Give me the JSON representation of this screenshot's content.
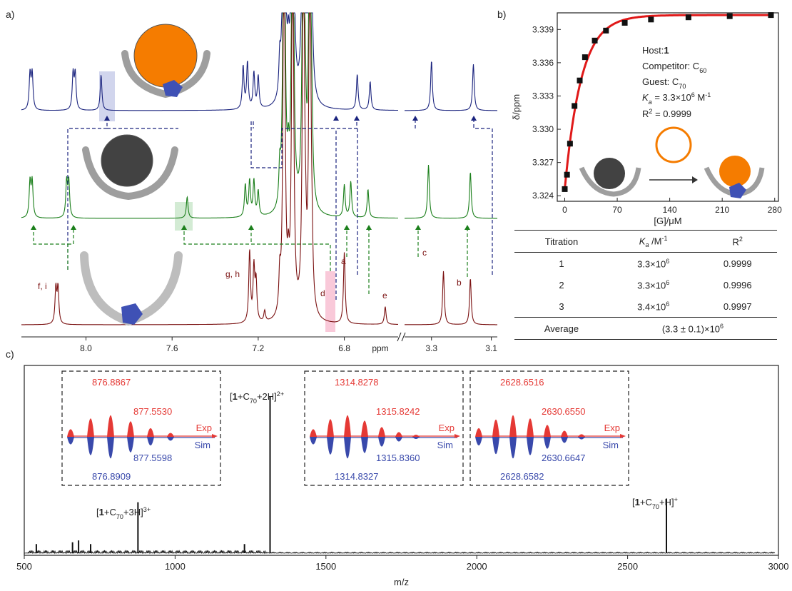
{
  "panels": {
    "a": "a)",
    "b": "b)",
    "c": "c)"
  },
  "nmr": {
    "xlabel": "ppm",
    "ticks_left": [
      "8.0",
      "7.6",
      "7.2",
      "6.8"
    ],
    "ticks_right": [
      "3.3",
      "3.1"
    ],
    "traces": [
      {
        "color": "#1a237e",
        "peaks_ppm": [
          8.26,
          8.25,
          8.06,
          8.05,
          7.93,
          7.27,
          7.25,
          7.22,
          7.2,
          7.1,
          7.06,
          6.98,
          6.95,
          6.74,
          6.68,
          3.3,
          3.16
        ]
      },
      {
        "color": "#1b7f1b",
        "peaks_ppm": [
          8.26,
          8.25,
          8.09,
          8.08,
          7.53,
          7.26,
          7.24,
          7.22,
          7.2,
          7.1,
          7.06,
          6.98,
          6.95,
          6.8,
          6.77,
          6.69,
          3.31,
          3.17
        ]
      },
      {
        "color": "#7a1010",
        "peaks_ppm": [
          8.14,
          8.13,
          7.24,
          7.22,
          7.21,
          7.17,
          7.1,
          7.06,
          6.98,
          6.95,
          6.8,
          6.8,
          6.61,
          3.26,
          3.17
        ]
      }
    ],
    "labels": [
      "f, i",
      "g, h",
      "d",
      "a",
      "e",
      "c",
      "b"
    ],
    "solvent_colors": [
      "#7a1010",
      "#1b7f1b",
      "#1a237e"
    ]
  },
  "chart_data": [
    {
      "type": "scatter",
      "xlabel": "[G]/μM",
      "ylabel": "δ/ppm",
      "xlim": [
        -10,
        285
      ],
      "ylim": [
        3.3235,
        3.3405
      ],
      "xticks": [
        "0",
        "70",
        "140",
        "210",
        "280"
      ],
      "yticks": [
        "3.324",
        "3.327",
        "3.330",
        "3.333",
        "3.336",
        "3.339"
      ],
      "x": [
        0,
        3,
        7,
        13,
        20,
        27,
        40,
        55,
        80,
        115,
        165,
        220,
        275
      ],
      "y": [
        3.3246,
        3.3259,
        3.3287,
        3.3321,
        3.3344,
        3.3365,
        3.338,
        3.3389,
        3.3396,
        3.3399,
        3.3401,
        3.3402,
        3.3403
      ],
      "fit": {
        "color": "#e01919"
      },
      "annotations": {
        "host": "Host:",
        "host_val": "1",
        "competitor": "Competitor: C",
        "competitor_sub": "60",
        "guest": "Guest: C",
        "guest_sub": "70",
        "ka_label": "K",
        "ka_sub": "a",
        "ka_val": " = 3.3×10",
        "ka_exp": "6",
        "ka_unit": " M",
        "ka_unit_exp": "-1",
        "r2": "R",
        "r2_exp": "2",
        "r2_val": " = 0.9999"
      }
    },
    {
      "type": "line",
      "xlabel": "m/z",
      "xlim": [
        500,
        3000
      ],
      "xticks": [
        "500",
        "1000",
        "1500",
        "2000",
        "2500",
        "3000"
      ],
      "peaks": [
        {
          "mz": 876.9,
          "rel": 0.28
        },
        {
          "mz": 1314.8,
          "rel": 0.86
        },
        {
          "mz": 2628.7,
          "rel": 0.3
        },
        {
          "mz": 540,
          "rel": 0.05
        },
        {
          "mz": 660,
          "rel": 0.06
        },
        {
          "mz": 680,
          "rel": 0.07
        },
        {
          "mz": 720,
          "rel": 0.05
        },
        {
          "mz": 1230,
          "rel": 0.05
        }
      ],
      "ion_labels": [
        {
          "pre": "[",
          "bold": "1",
          "mid": "+C",
          "sub": "70",
          "post": "+3H]",
          "sup": "3+"
        },
        {
          "pre": "[",
          "bold": "1",
          "mid": "+C",
          "sub": "70",
          "post": "+2H]",
          "sup": "2+"
        },
        {
          "pre": "[",
          "bold": "1",
          "mid": "+C",
          "sub": "70",
          "post": "+H]",
          "sup": "+"
        }
      ],
      "insets": [
        {
          "exp_main": "876.8867",
          "exp_second": "877.5530",
          "sim_main": "876.8909",
          "sim_second": "877.5598",
          "exp": "Exp",
          "sim": "Sim",
          "profile": [
            0.35,
            0.85,
            1.0,
            0.72,
            0.4,
            0.18
          ]
        },
        {
          "exp_main": "1314.8278",
          "exp_second": "1315.8242",
          "sim_main": "1314.8327",
          "sim_second": "1315.8360",
          "exp": "Exp",
          "sim": "Sim",
          "profile": [
            0.35,
            0.82,
            1.0,
            0.75,
            0.45,
            0.22,
            0.1
          ]
        },
        {
          "exp_main": "2628.6516",
          "exp_second": "2630.6550",
          "sim_main": "2628.6582",
          "sim_second": "2630.6647",
          "exp": "Exp",
          "sim": "Sim",
          "profile": [
            0.4,
            0.8,
            1.0,
            0.85,
            0.55,
            0.28,
            0.12
          ]
        }
      ],
      "colors": {
        "exp": "#e53935",
        "sim": "#3949ab"
      }
    }
  ],
  "table": {
    "headers": [
      "Titration",
      "K",
      "a",
      " /M",
      "-1",
      "R",
      "2"
    ],
    "rows": [
      {
        "n": "1",
        "ka": "3.3×10",
        "exp": "6",
        "r2": "0.9999"
      },
      {
        "n": "2",
        "ka": "3.3×10",
        "exp": "6",
        "r2": "0.9996"
      },
      {
        "n": "3",
        "ka": "3.4×10",
        "exp": "6",
        "r2": "0.9997"
      }
    ],
    "avg_label": "Average",
    "avg_value": "(3.3 ± 0.1)×10",
    "avg_exp": "6"
  }
}
